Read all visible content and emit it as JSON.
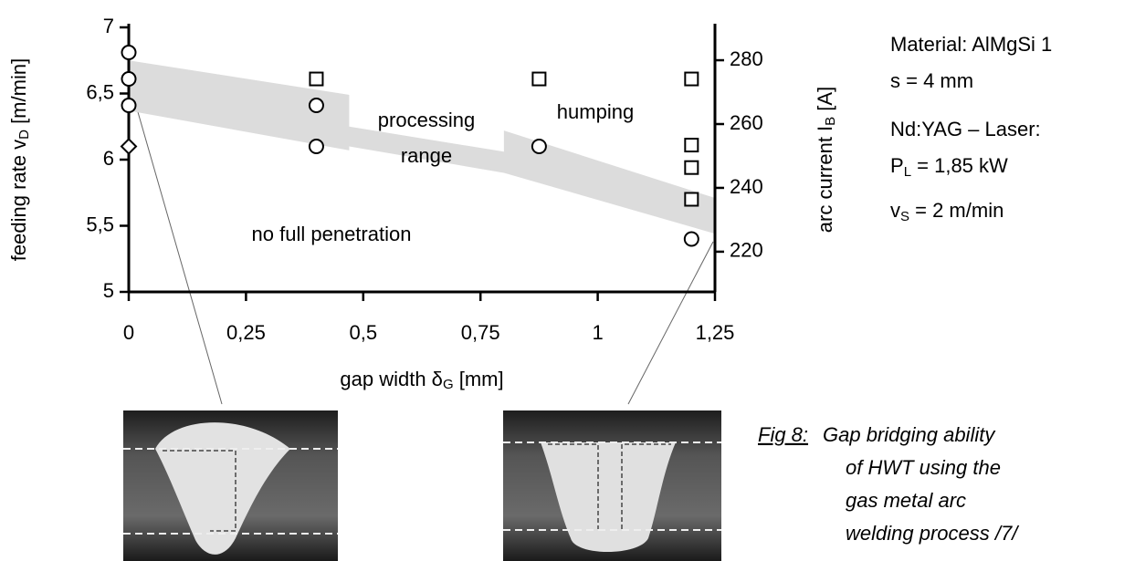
{
  "chart_data": {
    "type": "scatter",
    "xlabel": {
      "text": "gap width δ",
      "sub": "G",
      "unit": " [mm]"
    },
    "ylabel": {
      "text": "feeding rate v",
      "sub": "D",
      "unit": " [m/min]"
    },
    "y2label": {
      "text": "arc current I",
      "sub": "B",
      "unit": " [A]"
    },
    "xlim": [
      0,
      1.25
    ],
    "xticks": [
      0,
      {
        "value": 0.25,
        "label": "0,25"
      },
      {
        "value": 0.5,
        "label": "0,5"
      },
      {
        "value": 0.75,
        "label": "0,75"
      },
      1,
      {
        "value": 1.25,
        "label": "1,25"
      }
    ],
    "ylim": [
      5,
      7
    ],
    "yticks": [
      5,
      {
        "value": 5.5,
        "label": "5,5"
      },
      6,
      {
        "value": 6.5,
        "label": "6,5"
      },
      7
    ],
    "y2lim": [
      207.4,
      290.3
    ],
    "y2ticks": [
      220,
      240,
      260,
      280
    ],
    "band": {
      "color": "#dcdcdc",
      "x": [
        0,
        0.47,
        0.47,
        0.8,
        0.8,
        1.25,
        1.25,
        0.8,
        0.47,
        0.47,
        0
      ],
      "values": [
        6.75,
        6.49,
        6.25,
        6.06,
        6.22,
        5.71,
        5.44,
        5.9,
        6.1,
        6.07,
        6.37
      ]
    },
    "series": [
      {
        "marker": "circle",
        "color": "#000000",
        "x": [
          0,
          0,
          0,
          0.4,
          0.4,
          0.875,
          1.2
        ],
        "values": [
          6.81,
          6.61,
          6.41,
          6.41,
          6.1,
          6.1,
          5.4
        ]
      },
      {
        "marker": "square",
        "color": "#000000",
        "x": [
          0.4,
          0.875,
          1.2,
          1.2,
          1.2,
          1.2
        ],
        "values": [
          6.61,
          6.61,
          6.61,
          6.11,
          5.94,
          5.7
        ]
      },
      {
        "marker": "diamond",
        "color": "#000000",
        "x": [
          0
        ],
        "values": [
          6.1
        ]
      }
    ],
    "annotations": [
      "processing",
      "range",
      "humping",
      "no full penetration"
    ]
  },
  "info": {
    "lines": [
      {
        "text": "Material: AlMgSi 1"
      },
      {
        "text": "s = 4 mm"
      },
      {
        "text": "Nd:YAG – Laser:"
      },
      {
        "text": "P",
        "sub": "L",
        "rest": " = 1,85 kW"
      },
      {
        "text": "v",
        "sub": "S",
        "rest": " = 2 m/min"
      }
    ]
  },
  "caption": {
    "label": "Fig 8:",
    "lines": [
      "Gap bridging ability",
      "of HWT using the",
      "gas metal arc",
      "welding process /7/"
    ]
  }
}
